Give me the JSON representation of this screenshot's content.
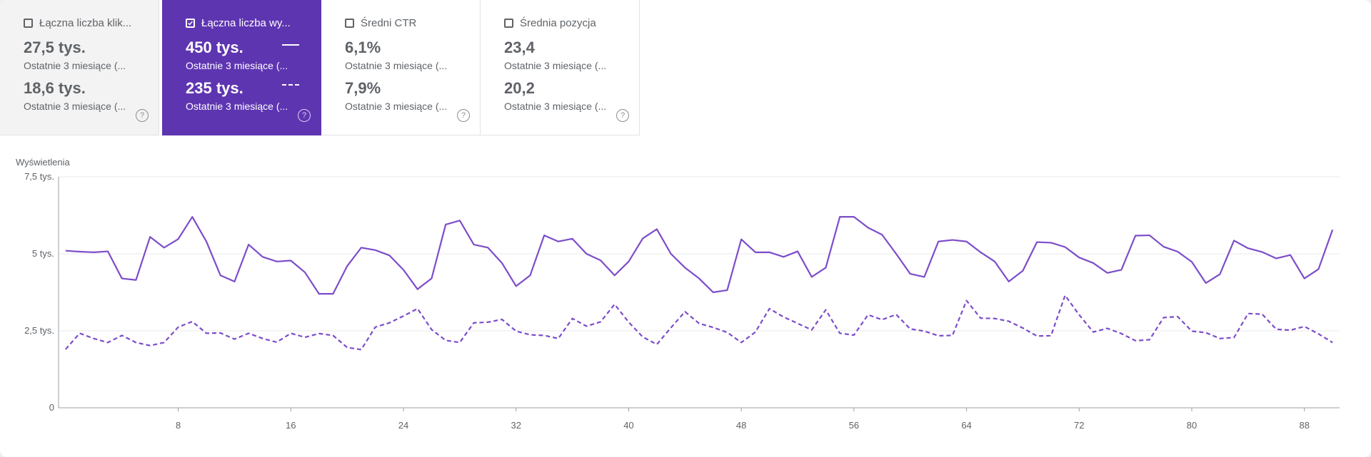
{
  "metrics": [
    {
      "title": "Łączna liczba klik...",
      "checked": false,
      "value1": "27,5 tys.",
      "sub1": "Ostatnie 3 miesiące (...",
      "value2": "18,6 tys.",
      "sub2": "Ostatnie 3 miesiące (...",
      "help": "?"
    },
    {
      "title": "Łączna liczba wy...",
      "checked": true,
      "value1": "450 tys.",
      "sub1": "Ostatnie 3 miesiące (...",
      "value2": "235 tys.",
      "sub2": "Ostatnie 3 miesiące (...",
      "help": "?"
    },
    {
      "title": "Średni CTR",
      "checked": false,
      "value1": "6,1%",
      "sub1": "Ostatnie 3 miesiące (...",
      "value2": "7,9%",
      "sub2": "Ostatnie 3 miesiące (...",
      "help": "?"
    },
    {
      "title": "Średnia pozycja",
      "checked": false,
      "value1": "23,4",
      "sub1": "Ostatnie 3 miesiące (...",
      "value2": "20,2",
      "sub2": "Ostatnie 3 miesiące (...",
      "help": "?"
    }
  ],
  "colors": {
    "accent": "#5e35b1",
    "series": "#7c4dca",
    "axis": "#9aa0a6",
    "grid": "#e8eaed"
  },
  "chart_data": {
    "type": "line",
    "ylabel": "Wyświetlenia",
    "ytick_values": [
      0,
      2500,
      5000,
      7500
    ],
    "ytick_labels": [
      "0",
      "2,5 tys.",
      "5 tys.",
      "7,5 tys."
    ],
    "ylim": [
      0,
      7500
    ],
    "xlim": [
      -0.5,
      90.5
    ],
    "xticks": [
      8,
      16,
      24,
      32,
      40,
      48,
      56,
      64,
      72,
      80,
      88
    ],
    "grid": true,
    "series": [
      {
        "style": "solid",
        "values": [
          5100,
          5070,
          5050,
          5080,
          4200,
          4150,
          5550,
          5200,
          5480,
          6200,
          5400,
          4300,
          4100,
          5300,
          4900,
          4750,
          4780,
          4400,
          3700,
          3700,
          4600,
          5200,
          5120,
          4950,
          4480,
          3850,
          4200,
          5950,
          6080,
          5300,
          5200,
          4700,
          3950,
          4300,
          5600,
          5400,
          5490,
          5000,
          4790,
          4300,
          4750,
          5500,
          5800,
          5000,
          4550,
          4200,
          3750,
          3820,
          5470,
          5050,
          5050,
          4900,
          5080,
          4250,
          4550,
          6200,
          6200,
          5850,
          5620,
          5000,
          4350,
          4250,
          5400,
          5450,
          5400,
          5050,
          4750,
          4100,
          4450,
          5380,
          5360,
          5220,
          4880,
          4700,
          4380,
          4480,
          5590,
          5600,
          5230,
          5070,
          4740,
          4050,
          4340,
          5430,
          5180,
          5060,
          4850,
          4960,
          4200,
          4500,
          5780
        ]
      },
      {
        "style": "dashed",
        "values": [
          1900,
          2420,
          2250,
          2120,
          2350,
          2120,
          2020,
          2120,
          2620,
          2800,
          2420,
          2430,
          2230,
          2420,
          2250,
          2130,
          2420,
          2290,
          2410,
          2350,
          1960,
          1890,
          2620,
          2760,
          2980,
          3220,
          2540,
          2190,
          2120,
          2760,
          2780,
          2870,
          2490,
          2370,
          2350,
          2250,
          2900,
          2650,
          2790,
          3360,
          2780,
          2300,
          2060,
          2600,
          3120,
          2740,
          2610,
          2450,
          2120,
          2460,
          3220,
          2950,
          2740,
          2530,
          3180,
          2420,
          2360,
          3020,
          2860,
          3030,
          2560,
          2490,
          2340,
          2350,
          3480,
          2910,
          2900,
          2810,
          2590,
          2330,
          2340,
          3650,
          3020,
          2460,
          2580,
          2410,
          2180,
          2210,
          2930,
          2960,
          2490,
          2440,
          2250,
          2280,
          3060,
          3040,
          2550,
          2520,
          2640,
          2400,
          2120
        ]
      }
    ]
  }
}
